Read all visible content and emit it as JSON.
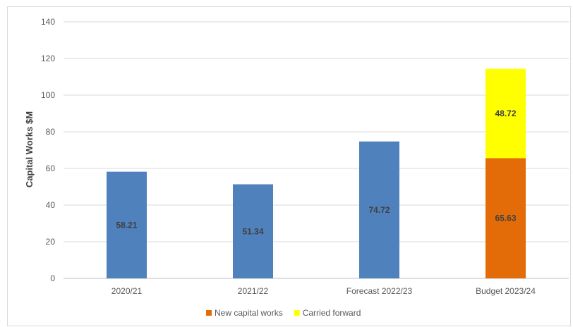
{
  "chart_data": {
    "type": "bar",
    "stacked": true,
    "categories": [
      "2020/21",
      "2021/22",
      "Forecast 2022/23",
      "Budget 2023/24"
    ],
    "series": [
      {
        "name": "",
        "color": "#4f81bd",
        "values": [
          58.21,
          51.34,
          74.72,
          null
        ]
      },
      {
        "name": "New capital works",
        "color": "#e36c09",
        "values": [
          null,
          null,
          null,
          65.63
        ]
      },
      {
        "name": "Carried forward",
        "color": "#ffff00",
        "values": [
          null,
          null,
          null,
          48.72
        ]
      }
    ],
    "data_labels": [
      "58.21",
      "51.34",
      "74.72",
      "65.63",
      "48.72"
    ],
    "ylabel": "Capital Works $M",
    "xlabel": "",
    "ylim": [
      0,
      140
    ],
    "yticks": [
      0,
      20,
      40,
      60,
      80,
      100,
      120,
      140
    ],
    "grid": true,
    "legend_position": "bottom"
  }
}
